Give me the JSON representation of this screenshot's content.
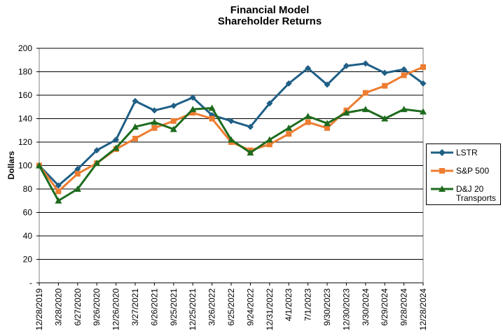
{
  "chart_data": {
    "type": "line",
    "title": "Financial Model",
    "subtitle": "Shareholder Returns",
    "xlabel": "",
    "ylabel": "Dollars",
    "ylim": [
      0,
      200
    ],
    "yticks": [
      0,
      20,
      40,
      60,
      80,
      100,
      120,
      140,
      160,
      180,
      200
    ],
    "ytick_labels": [
      "-",
      "20",
      "40",
      "60",
      "80",
      "100",
      "120",
      "140",
      "160",
      "180",
      "200"
    ],
    "grid": true,
    "legend_position": "right",
    "categories": [
      "12/28/2019",
      "3/28/2020",
      "6/27/2020",
      "9/26/2020",
      "12/26/2020",
      "3/27/2021",
      "6/26/2021",
      "9/25/2021",
      "12/25/2021",
      "3/26/2022",
      "6/25/2022",
      "9/24/2022",
      "12/31/2022",
      "4/1/2023",
      "7/1/2023",
      "9/30/2023",
      "12/30/2023",
      "3/30/2024",
      "6/29/2024",
      "9/28/2024",
      "12/28/2024"
    ],
    "series": [
      {
        "name": "LSTR",
        "color": "#1f5f86",
        "marker": "diamond",
        "values": [
          100,
          83,
          97,
          113,
          122,
          155,
          147,
          151,
          158,
          143,
          138,
          133,
          153,
          170,
          183,
          169,
          185,
          187,
          179,
          182,
          170
        ]
      },
      {
        "name": "S&P 500",
        "color": "#ed7d31",
        "marker": "square",
        "values": [
          100,
          78,
          93,
          102,
          114,
          123,
          132,
          138,
          145,
          140,
          120,
          113,
          118,
          127,
          137,
          132,
          147,
          162,
          168,
          177,
          184
        ]
      },
      {
        "name": "D&J 20 Transports",
        "color": "#1e6b1e",
        "marker": "triangle",
        "values": [
          100,
          70,
          80,
          102,
          115,
          133,
          137,
          131,
          148,
          149,
          122,
          111,
          122,
          132,
          142,
          136,
          145,
          148,
          140,
          148,
          146
        ]
      }
    ]
  },
  "legend": {
    "items": [
      {
        "label": "LSTR"
      },
      {
        "label": "S&P 500"
      },
      {
        "label": "D&J 20 Transports"
      }
    ]
  }
}
